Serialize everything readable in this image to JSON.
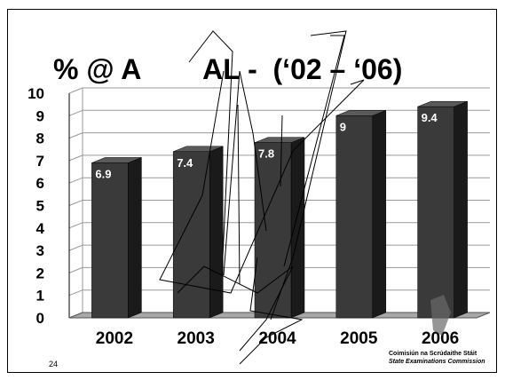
{
  "slide": {
    "title": "% @ A        AL -  (‘02 – ‘06)",
    "slide_number": "24",
    "footer_line1": "Coimisiún na Scrúdaithe Stáit",
    "footer_line2": "State Examinations Commission"
  },
  "colors": {
    "bar_front": "#3a3a3a",
    "bar_side": "#1a1a1a",
    "bar_top": "#5a5a5a",
    "grid": "#9a9a9a",
    "floor": "#a8a8a8"
  },
  "chart_data": {
    "type": "bar",
    "title": "% @ A        AL -  (‘02 – ‘06)",
    "categories": [
      "2002",
      "2003",
      "2004",
      "2005",
      "2006"
    ],
    "values": [
      6.9,
      7.4,
      7.8,
      9,
      9.4
    ],
    "data_labels": [
      "6.9",
      "7.4",
      "7.8",
      "9",
      "9.4"
    ],
    "y_ticks": [
      "0",
      "1",
      "2",
      "3",
      "4",
      "5",
      "6",
      "7",
      "8",
      "9",
      "10"
    ],
    "ylim": [
      0,
      10
    ],
    "grid": true,
    "legend": "none",
    "style": "3d-column"
  }
}
